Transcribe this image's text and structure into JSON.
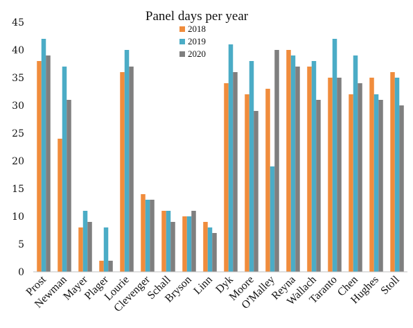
{
  "chart_data": {
    "type": "bar",
    "title": "Panel days per year",
    "xlabel": "",
    "ylabel": "",
    "ylim": [
      0,
      45
    ],
    "yticks": [
      0,
      5,
      10,
      15,
      20,
      25,
      30,
      35,
      40,
      45
    ],
    "grid": false,
    "legend_position": "top-center",
    "categories": [
      "Prost",
      "Newman",
      "Mayer",
      "Plager",
      "Lourie",
      "Clevenger",
      "Schall",
      "Bryson",
      "Linn",
      "Dyk",
      "Moore",
      "O'Malley",
      "Reyna",
      "Wallach",
      "Taranto",
      "Chen",
      "Hughes",
      "Stoll"
    ],
    "series": [
      {
        "name": "2018",
        "color": "#F08C3C",
        "values": [
          38,
          24,
          8,
          2,
          36,
          14,
          11,
          10,
          9,
          34,
          32,
          33,
          40,
          37,
          35,
          32,
          35,
          36
        ]
      },
      {
        "name": "2019",
        "color": "#4BACC6",
        "values": [
          42,
          37,
          11,
          8,
          40,
          13,
          11,
          10,
          8,
          41,
          38,
          19,
          39,
          38,
          42,
          39,
          32,
          35
        ]
      },
      {
        "name": "2020",
        "color": "#7F7F7F",
        "values": [
          39,
          31,
          9,
          2,
          37,
          13,
          9,
          11,
          7,
          36,
          29,
          40,
          37,
          31,
          35,
          34,
          31,
          30
        ]
      }
    ]
  }
}
